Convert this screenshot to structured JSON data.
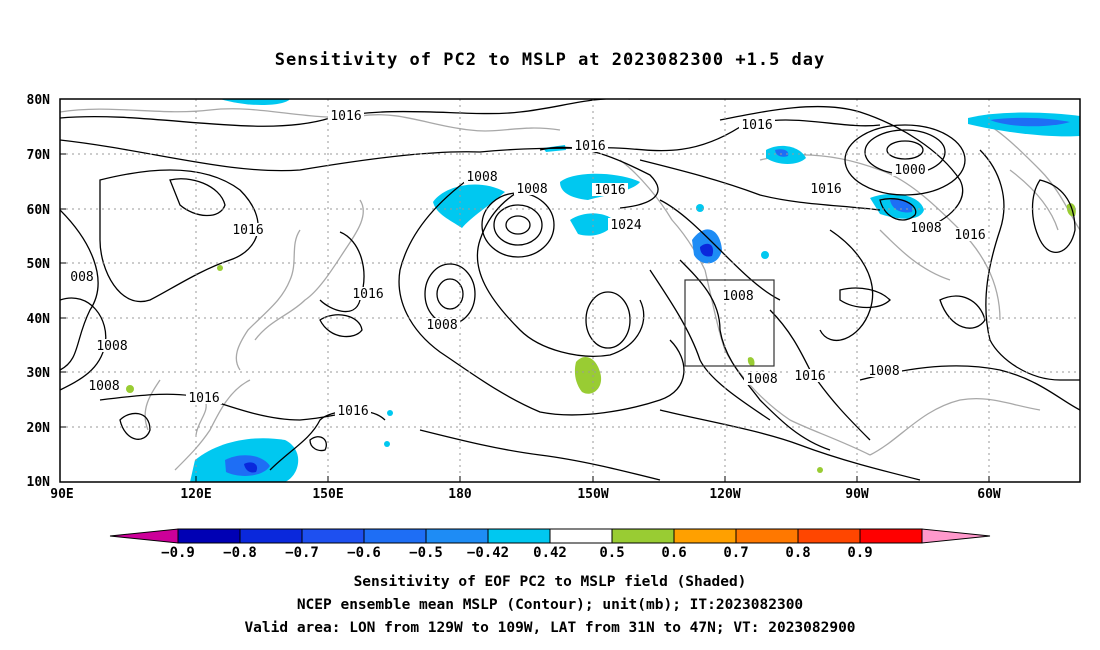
{
  "title": "Sensitivity of PC2 to MSLP at 2023082300 +1.5 day",
  "map": {
    "lat_labels": [
      "80N",
      "70N",
      "60N",
      "50N",
      "40N",
      "30N",
      "20N",
      "10N"
    ],
    "lon_labels": [
      "90E",
      "120E",
      "150E",
      "180",
      "150W",
      "120W",
      "90W",
      "60W"
    ],
    "contour_labels": [
      {
        "text": "1016"
      },
      {
        "text": "1016"
      },
      {
        "text": "1008"
      },
      {
        "text": "1016"
      },
      {
        "text": "1008"
      },
      {
        "text": "1016"
      },
      {
        "text": "1000"
      },
      {
        "text": "1016"
      },
      {
        "text": "1024"
      },
      {
        "text": "1008"
      },
      {
        "text": "1016"
      },
      {
        "text": "008"
      },
      {
        "text": "1016"
      },
      {
        "text": "1008"
      },
      {
        "text": "1016"
      },
      {
        "text": "1008"
      },
      {
        "text": "1008"
      },
      {
        "text": "1008"
      },
      {
        "text": "1016"
      },
      {
        "text": "1016"
      },
      {
        "text": "1008"
      },
      {
        "text": "1016"
      },
      {
        "text": "1008"
      }
    ],
    "valid_box": {
      "lon_from": "129W",
      "lon_to": "109W",
      "lat_from": "31N",
      "lat_to": "47N"
    }
  },
  "colorbar": {
    "colors": [
      "#cc0099",
      "#0000b4",
      "#0a28dc",
      "#1e50f0",
      "#1e6ef5",
      "#1e8cf5",
      "#00c8f0",
      "#ffffff",
      "#99cc33",
      "#ffa000",
      "#ff7800",
      "#ff4600",
      "#ff0000",
      "#ff99cc"
    ],
    "labels": [
      "-0.9",
      "-0.8",
      "-0.7",
      "-0.6",
      "-0.5",
      "-0.42",
      "0.42",
      "0.5",
      "0.6",
      "0.7",
      "0.8",
      "0.9"
    ]
  },
  "captions": {
    "line1": "Sensitivity of EOF PC2 to MSLP field (Shaded)",
    "line2": "NCEP ensemble mean MSLP (Contour); unit(mb); IT:2023082300",
    "line3": "Valid area: LON from 129W to 109W, LAT from 31N to 47N; VT: 2023082900"
  }
}
